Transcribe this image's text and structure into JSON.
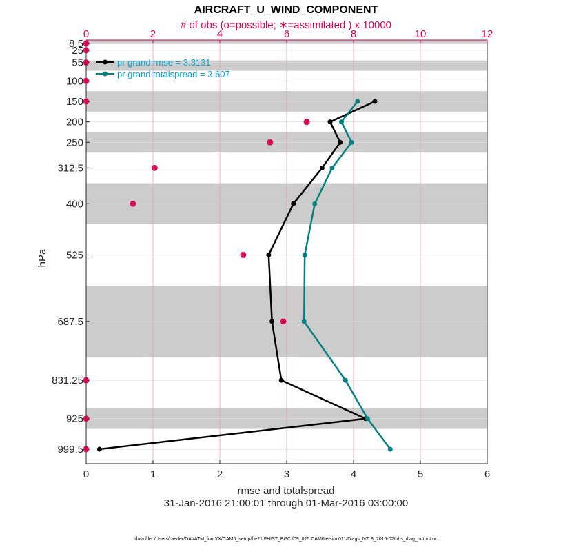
{
  "chart_data": {
    "type": "line",
    "title": "AIRCRAFT_U_WIND_COMPONENT",
    "top_axis_label": "# of obs (o=possible; ∗=assimilated ) x 10000",
    "xlabel": "rmse and totalspread",
    "date_range": "31-Jan-2016 21:00:01 through 01-Mar-2016 03:00:00",
    "ylabel": "hPa",
    "footer": "data file: /Users/raeder/DAI/ATM_forcXX/CAM6_setup/f.e21.FHIST_BGC.f09_025.CAM6assim.011/Diags_NTrS_2016-02/obs_diag_output.nc",
    "xlim": [
      0,
      6
    ],
    "x_ticks": [
      "0",
      "1",
      "2",
      "3",
      "4",
      "5",
      "6"
    ],
    "top_xlim": [
      0,
      12
    ],
    "top_ticks": [
      "0",
      "2",
      "4",
      "6",
      "8",
      "10",
      "12"
    ],
    "levels": [
      8.5,
      25,
      55,
      100,
      150,
      200,
      250,
      312.5,
      400,
      525,
      687.5,
      831.25,
      925,
      999.5
    ],
    "level_labels": [
      "8.5",
      "25",
      "55",
      "100",
      "150",
      "200",
      "250",
      "312.5",
      "400",
      "525",
      "687.5",
      "831.25",
      "925",
      "999.5"
    ],
    "shaded_bands": [
      [
        0,
        10
      ],
      [
        50,
        75
      ],
      [
        125,
        175
      ],
      [
        225,
        275
      ],
      [
        350,
        450
      ],
      [
        600,
        775
      ],
      [
        900,
        950
      ]
    ],
    "series": [
      {
        "name": "pr grand rmse",
        "legend": "pr grand rmse = 3.3131",
        "color": "#000000",
        "levels": [
          150,
          200,
          250,
          312.5,
          400,
          525,
          687.5,
          831.25,
          925,
          999.5
        ],
        "values": [
          4.32,
          3.65,
          3.8,
          3.53,
          3.1,
          2.73,
          2.78,
          2.92,
          4.18,
          0.2
        ]
      },
      {
        "name": "pr grand totalspread",
        "legend": "pr grand totalspread = 3.607",
        "color": "#008080",
        "levels": [
          150,
          200,
          250,
          312.5,
          400,
          525,
          687.5,
          831.25,
          925,
          999.5
        ],
        "values": [
          4.06,
          3.82,
          3.97,
          3.68,
          3.42,
          3.27,
          3.26,
          3.88,
          4.21,
          4.55
        ]
      }
    ],
    "obs_possible": {
      "name": "# of obs possible",
      "color": "#d6004f",
      "levels": [
        8.5,
        25,
        55,
        100,
        150,
        200,
        250,
        312.5,
        400,
        525,
        687.5,
        831.25,
        925,
        999.5
      ],
      "values": [
        0,
        0,
        0,
        0,
        0,
        6.6,
        5.5,
        2.05,
        1.4,
        4.7,
        5.9,
        0,
        0,
        0
      ]
    },
    "obs_assimilated": {
      "name": "# of obs assimilated",
      "color": "#d6004f",
      "levels": [
        8.5,
        25,
        55,
        100,
        150,
        200,
        250,
        312.5,
        400,
        525,
        687.5,
        831.25,
        925,
        999.5
      ],
      "values": [
        0,
        0,
        0,
        0,
        0,
        6.6,
        5.5,
        2.05,
        1.4,
        4.7,
        5.9,
        0,
        0,
        0
      ]
    },
    "colors": {
      "legend_text": "#00a6d6",
      "top_axis": "#d6004f",
      "shade": "#cccccc",
      "grid_top": "#e3a3b8",
      "grid_bottom": "#dddddd"
    }
  }
}
